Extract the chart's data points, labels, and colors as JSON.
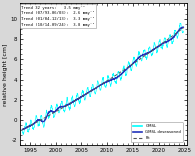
{
  "ylabel": "relative height [cm]",
  "xlim": [
    1993.0,
    2025.5
  ],
  "ylim": [
    -2.5,
    11.5
  ],
  "yticks": [
    -2,
    0,
    2,
    4,
    6,
    8,
    10
  ],
  "xticks": [
    1995,
    2000,
    2005,
    2010,
    2015,
    2020,
    2025
  ],
  "gmsl_color": "cyan",
  "gmsl_deseasoned_color": "#2233bb",
  "fit_color": "#555555",
  "background_color": "#d8d8d8",
  "plot_bg_color": "#ffffff",
  "start_year": 1993.5,
  "end_year": 2024.83,
  "seasonal_amplitude": 0.5,
  "noise_amplitude": 0.08,
  "annotation": [
    "Trend 32 years:   3.5 mmy⁻¹",
    "Trend (07/93-06/03):  2.6 mmy⁻¹",
    "Trend (01/04-12/13):  3.3 mmy⁻¹",
    "Trend (10/14-09/24):  3.8 mmy⁻¹"
  ],
  "legend_labels": [
    "GMSL",
    "GMSL deseasoned",
    "Fit"
  ],
  "tick_fontsize": 4.0,
  "label_fontsize": 4.5,
  "annot_fontsize": 2.8
}
